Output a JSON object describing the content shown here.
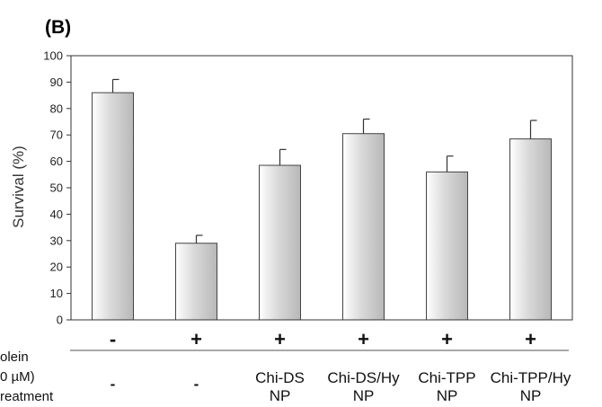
{
  "chart_data": {
    "type": "bar",
    "panel_label": "(B)",
    "title": "",
    "xlabel": "",
    "ylabel": "Survival (%)",
    "ylim": [
      0,
      100
    ],
    "yticks": [
      0,
      10,
      20,
      30,
      40,
      50,
      60,
      70,
      80,
      90,
      100
    ],
    "grid": false,
    "bar_color": "#d9d9d9",
    "categories": [
      "1",
      "2",
      "3",
      "4",
      "5",
      "6"
    ],
    "values": [
      86,
      29,
      58.5,
      70.5,
      56,
      68.5
    ],
    "errors": [
      5,
      3,
      6,
      5.5,
      6,
      7
    ],
    "row_labels": [
      "olein",
      "0 µM)",
      "reatment"
    ],
    "acrolein_signs": [
      "-",
      "+",
      "+",
      "+",
      "+",
      "+"
    ],
    "treatments": [
      {
        "line1": "-",
        "line2": ""
      },
      {
        "line1": "-",
        "line2": ""
      },
      {
        "line1": "Chi-DS",
        "line2": "NP"
      },
      {
        "line1": "Chi-DS/Hy",
        "line2": "NP"
      },
      {
        "line1": "Chi-TPP",
        "line2": "NP"
      },
      {
        "line1": "Chi-TPP/Hy",
        "line2": "NP"
      }
    ]
  }
}
